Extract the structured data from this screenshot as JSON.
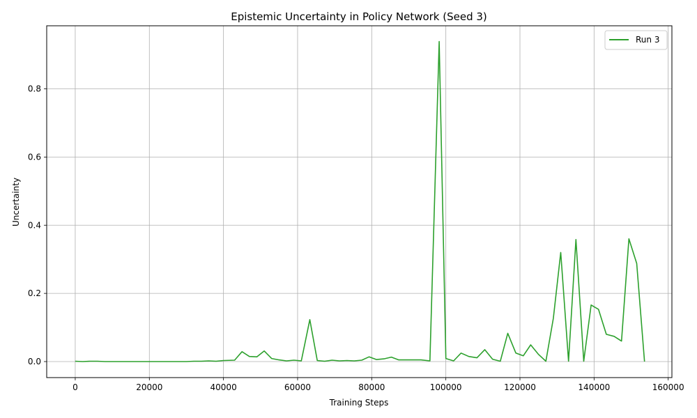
{
  "chart_data": {
    "type": "line",
    "title": "Epistemic Uncertainty in Policy Network (Seed 3)",
    "xlabel": "Training Steps",
    "ylabel": "Uncertainty",
    "xlim": [
      -7700,
      161000
    ],
    "ylim": [
      -0.047,
      0.985
    ],
    "xticks": [
      0,
      20000,
      40000,
      60000,
      80000,
      100000,
      120000,
      140000,
      160000
    ],
    "yticks": [
      0.0,
      0.2,
      0.4,
      0.6,
      0.8
    ],
    "ytick_labels": [
      "0.0",
      "0.2",
      "0.4",
      "0.6",
      "0.8"
    ],
    "grid": true,
    "legend_position": "top-right",
    "colors": {
      "series": "#2ca02c",
      "grid": "#b0b0b0",
      "axes": "#000000"
    },
    "series": [
      {
        "name": "Run 3",
        "x": [
          0,
          2000,
          4000,
          6000,
          8000,
          10000,
          12000,
          14000,
          16000,
          18000,
          20000,
          22000,
          24000,
          26000,
          28000,
          30000,
          32000,
          34000,
          36000,
          38000,
          40000,
          43000,
          45000,
          47000,
          49000,
          51000,
          53000,
          55000,
          57000,
          59000,
          61000,
          63300,
          65300,
          67300,
          69300,
          71300,
          73300,
          75300,
          77300,
          79300,
          81300,
          83300,
          85300,
          87300,
          89300,
          91300,
          93300,
          95700,
          98200,
          100000,
          102100,
          104100,
          106200,
          108400,
          110500,
          112600,
          114700,
          116700,
          118900,
          120900,
          122900,
          125000,
          127000,
          129000,
          131000,
          133100,
          135100,
          137200,
          139200,
          141200,
          143300,
          145400,
          147400,
          149400,
          151500,
          153600
        ],
        "values": [
          0.001,
          0.0,
          0.001,
          0.001,
          0.0,
          0.0,
          0.0,
          0.0,
          0.0,
          0.0,
          0.0,
          0.0,
          0.0,
          0.0,
          0.0,
          0.0,
          0.001,
          0.001,
          0.002,
          0.001,
          0.003,
          0.004,
          0.029,
          0.015,
          0.014,
          0.031,
          0.009,
          0.005,
          0.002,
          0.004,
          0.002,
          0.123,
          0.003,
          0.001,
          0.004,
          0.002,
          0.003,
          0.002,
          0.004,
          0.014,
          0.006,
          0.008,
          0.013,
          0.005,
          0.005,
          0.005,
          0.005,
          0.002,
          0.939,
          0.009,
          0.002,
          0.025,
          0.015,
          0.011,
          0.035,
          0.007,
          0.001,
          0.083,
          0.025,
          0.017,
          0.049,
          0.021,
          0.001,
          0.127,
          0.32,
          0.001,
          0.358,
          0.001,
          0.166,
          0.153,
          0.08,
          0.074,
          0.06,
          0.36,
          0.288,
          0.0
        ]
      }
    ]
  }
}
